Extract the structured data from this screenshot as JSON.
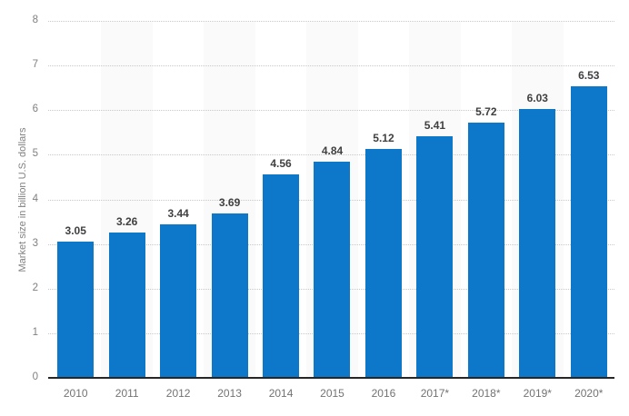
{
  "chart_data": {
    "type": "bar",
    "title": "",
    "xlabel": "",
    "ylabel": "Market size in billion U.S. dollars",
    "categories": [
      "2010",
      "2011",
      "2012",
      "2013",
      "2014",
      "2015",
      "2016",
      "2017*",
      "2018*",
      "2019*",
      "2020*"
    ],
    "values": [
      3.05,
      3.26,
      3.44,
      3.69,
      4.56,
      4.84,
      5.12,
      5.41,
      5.72,
      6.03,
      6.53
    ],
    "value_labels": [
      "3.05",
      "3.26",
      "3.44",
      "3.69",
      "4.56",
      "4.84",
      "5.12",
      "5.41",
      "5.72",
      "6.03",
      "6.53"
    ],
    "ylim": [
      0,
      8
    ],
    "yticks": [
      "0",
      "1",
      "2",
      "3",
      "4",
      "5",
      "6",
      "7",
      "8"
    ],
    "grid": "horizontal-dotted",
    "legend": "none",
    "colors": {
      "bar": "#0d78ca",
      "column_band": "#fafafa",
      "gridline": "#c8c8c8",
      "axis_line": "#262626",
      "value_label": "#404040",
      "x_tick_label": "#737373",
      "y_tick_label": "#808080",
      "y_axis_title": "#808080",
      "background": "#ffffff"
    }
  }
}
